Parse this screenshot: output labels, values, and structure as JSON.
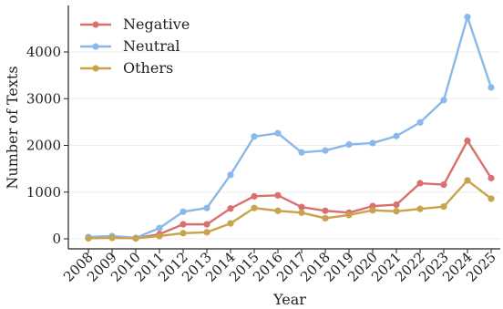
{
  "chart_data": {
    "type": "line",
    "title": "",
    "xlabel": "Year",
    "ylabel": "Number of Texts",
    "categories": [
      "2008",
      "2009",
      "2010",
      "2011",
      "2012",
      "2013",
      "2014",
      "2015",
      "2016",
      "2017",
      "2018",
      "2019",
      "2020",
      "2021",
      "2022",
      "2023",
      "2024",
      "2025"
    ],
    "ylim": [
      -200,
      5000
    ],
    "yticks": [
      0,
      1000,
      2000,
      3000,
      4000
    ],
    "yticklabels": [
      "0",
      "1000",
      "2000",
      "3000",
      "4000"
    ],
    "grid": true,
    "legend_position": "top-left",
    "series": [
      {
        "name": "Negative",
        "color": "#d9706e",
        "values": [
          20,
          30,
          10,
          100,
          310,
          310,
          650,
          910,
          930,
          680,
          600,
          560,
          700,
          730,
          1190,
          1160,
          2100,
          1300
        ]
      },
      {
        "name": "Neutral",
        "color": "#8ab8e8",
        "values": [
          40,
          60,
          20,
          230,
          580,
          660,
          1370,
          2190,
          2260,
          1850,
          1890,
          2020,
          2050,
          2200,
          2490,
          2970,
          4750,
          3240
        ]
      },
      {
        "name": "Others",
        "color": "#c9a24c",
        "values": [
          10,
          20,
          10,
          60,
          120,
          140,
          330,
          660,
          600,
          560,
          440,
          510,
          610,
          590,
          640,
          690,
          1250,
          860
        ]
      }
    ]
  }
}
